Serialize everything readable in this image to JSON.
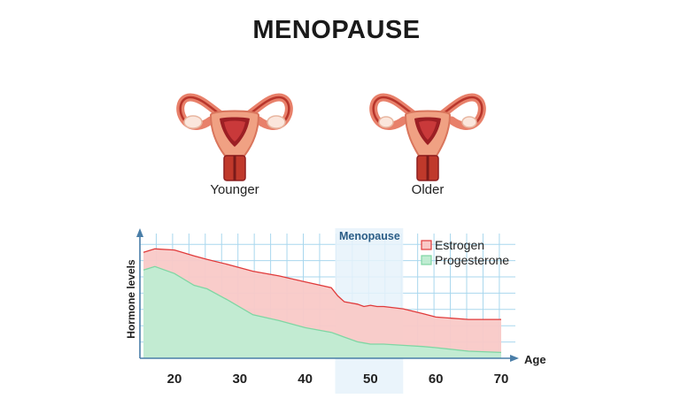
{
  "title": "MENOPAUSE",
  "organs": {
    "younger_label": "Younger",
    "older_label": "Older",
    "icon": "uterus-icon"
  },
  "colors": {
    "estrogen_fill": "#f9c9c7",
    "estrogen_line": "#e03a3a",
    "progesterone_fill": "#bfecd2",
    "progesterone_line": "#7fd6a3",
    "grid": "#a9d7ee",
    "axis": "#4a7ea8",
    "menopause_band": "#e6f2fa"
  },
  "chart_data": {
    "type": "area",
    "xlabel": "Age",
    "ylabel": "Hormone levels",
    "xlim": [
      15,
      70
    ],
    "ylim": [
      0,
      100
    ],
    "x_ticks": [
      20,
      30,
      40,
      50,
      60,
      70
    ],
    "grid": true,
    "legend_position": "top-right",
    "annotation": {
      "label": "Menopause",
      "x_range": [
        45,
        55
      ]
    },
    "x": [
      15,
      17,
      20,
      23,
      25,
      28,
      32,
      36,
      40,
      44,
      45,
      46,
      47,
      48,
      49,
      50,
      51,
      52,
      55,
      58,
      60,
      65,
      70
    ],
    "series": [
      {
        "name": "Estrogen",
        "values": [
          90,
          93,
          92,
          87,
          84,
          80,
          74,
          70,
          65,
          60,
          53,
          48,
          47,
          46,
          44,
          45,
          44,
          44,
          42,
          38,
          35,
          33,
          33
        ]
      },
      {
        "name": "Progesterone",
        "values": [
          75,
          78,
          72,
          62,
          59,
          50,
          37,
          32,
          26,
          22,
          20,
          18,
          16,
          14,
          13,
          12,
          12,
          12,
          11,
          10,
          9,
          6,
          5
        ]
      }
    ]
  }
}
